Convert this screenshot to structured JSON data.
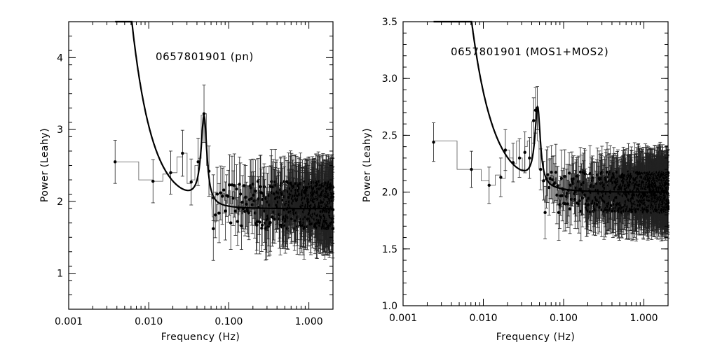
{
  "chart_data": [
    {
      "type": "scatter",
      "annotation": "0657801901 (pn)",
      "xlabel": "Frequency (Hz)",
      "ylabel": "Power (Leahy)",
      "xscale": "log",
      "xlim": [
        0.001,
        2.0
      ],
      "ylim": [
        0.5,
        4.5
      ],
      "xticks": [
        0.001,
        0.01,
        0.1,
        1.0
      ],
      "xtick_labels": [
        "0.001",
        "0.010",
        "0.100",
        "1.000"
      ],
      "yticks": [
        1,
        2,
        3,
        4
      ],
      "ytick_labels": [
        "1",
        "2",
        "3",
        "4"
      ],
      "model": {
        "type": "lorentzian+powerlaw",
        "const": 1.9,
        "plA": 0.00045,
        "plIdx": 1.7,
        "peakAmp": 1.22,
        "peakFreq": 0.049,
        "peakHWHM": 0.005
      },
      "step_histogram": [
        {
          "x": [
            0.0038,
            0.0075
          ],
          "y": 2.55
        },
        {
          "x": [
            0.0075,
            0.0113
          ],
          "y": 2.3
        },
        {
          "x": [
            0.0113,
            0.015
          ],
          "y": 2.28
        },
        {
          "x": [
            0.015,
            0.0188
          ],
          "y": 2.38
        },
        {
          "x": [
            0.0188,
            0.0226
          ],
          "y": 2.4
        },
        {
          "x": [
            0.0226,
            0.0264
          ],
          "y": 2.62
        },
        {
          "x": [
            0.0264,
            0.0301
          ],
          "y": 2.67
        },
        {
          "x": [
            0.0301,
            0.0339
          ],
          "y": 2.25
        },
        {
          "x": [
            0.0339,
            0.0377
          ],
          "y": 2.3
        },
        {
          "x": [
            0.0377,
            0.0414
          ],
          "y": 2.5
        },
        {
          "x": [
            0.0414,
            0.0452
          ],
          "y": 2.6
        },
        {
          "x": [
            0.0452,
            0.049
          ],
          "y": 3.2
        },
        {
          "x": [
            0.049,
            0.0527
          ],
          "y": 3.22
        },
        {
          "x": [
            0.0527,
            0.0565
          ],
          "y": 2.5
        },
        {
          "x": [
            0.0565,
            0.0603
          ],
          "y": 2.1
        }
      ],
      "points": [
        {
          "x": 0.0038,
          "y": 2.55,
          "err": 0.3
        },
        {
          "x": 0.0113,
          "y": 2.28,
          "err": 0.3
        },
        {
          "x": 0.0188,
          "y": 2.4,
          "err": 0.3
        },
        {
          "x": 0.0264,
          "y": 2.67,
          "err": 0.32
        },
        {
          "x": 0.0339,
          "y": 2.27,
          "err": 0.32
        },
        {
          "x": 0.0414,
          "y": 2.55,
          "err": 0.33
        },
        {
          "x": 0.049,
          "y": 3.22,
          "err": 0.4
        },
        {
          "x": 0.0565,
          "y": 2.42,
          "err": 0.35
        },
        {
          "x": 0.064,
          "y": 2.05,
          "err": 0.32
        }
      ],
      "noise_tail": {
        "from": 0.064,
        "to": 2.0,
        "step": 0.0038,
        "mean": 1.95,
        "spread": 0.55,
        "err": 0.35,
        "seed": 7
      }
    },
    {
      "type": "scatter",
      "annotation": "0657801901 (MOS1+MOS2)",
      "xlabel": "Frequency (Hz)",
      "ylabel": "Power (Leahy)",
      "xscale": "log",
      "xlim": [
        0.001,
        2.0
      ],
      "ylim": [
        1.0,
        3.5
      ],
      "xticks": [
        0.001,
        0.01,
        0.1,
        1.0
      ],
      "xtick_labels": [
        "0.001",
        "0.010",
        "0.100",
        "1.000"
      ],
      "yticks": [
        1.0,
        1.5,
        2.0,
        2.5,
        3.0,
        3.5
      ],
      "ytick_labels": [
        "1.0",
        "1.5",
        "2.0",
        "2.5",
        "3.0",
        "3.5"
      ],
      "model": {
        "type": "lorentzian+powerlaw",
        "const": 2.0,
        "plA": 0.00055,
        "plIdx": 1.6,
        "peakAmp": 0.68,
        "peakFreq": 0.0475,
        "peakHWHM": 0.0045
      },
      "step_histogram": [
        {
          "x": [
            0.0024,
            0.0047
          ],
          "y": 2.45
        },
        {
          "x": [
            0.0047,
            0.0071
          ],
          "y": 2.2
        },
        {
          "x": [
            0.0071,
            0.0094
          ],
          "y": 2.2
        },
        {
          "x": [
            0.0094,
            0.0118
          ],
          "y": 2.1
        },
        {
          "x": [
            0.0118,
            0.0141
          ],
          "y": 2.06
        },
        {
          "x": [
            0.0141,
            0.0165
          ],
          "y": 2.15
        },
        {
          "x": [
            0.0165,
            0.0188
          ],
          "y": 2.12
        },
        {
          "x": [
            0.0188,
            0.0212
          ],
          "y": 2.37
        },
        {
          "x": [
            0.0212,
            0.0235
          ],
          "y": 2.3
        },
        {
          "x": [
            0.0235,
            0.0259
          ],
          "y": 2.25
        },
        {
          "x": [
            0.0259,
            0.0282
          ],
          "y": 2.45
        },
        {
          "x": [
            0.0282,
            0.0306
          ],
          "y": 2.3
        },
        {
          "x": [
            0.0306,
            0.0329
          ],
          "y": 2.2
        },
        {
          "x": [
            0.0329,
            0.0353
          ],
          "y": 2.4
        },
        {
          "x": [
            0.0353,
            0.0376
          ],
          "y": 2.45
        },
        {
          "x": [
            0.0376,
            0.04
          ],
          "y": 2.3
        },
        {
          "x": [
            0.04,
            0.0423
          ],
          "y": 2.62
        },
        {
          "x": [
            0.0423,
            0.0447
          ],
          "y": 2.72
        },
        {
          "x": [
            0.0447,
            0.047
          ],
          "y": 2.74
        },
        {
          "x": [
            0.047,
            0.0494
          ],
          "y": 2.45
        },
        {
          "x": [
            0.0494,
            0.0517
          ],
          "y": 2.2
        },
        {
          "x": [
            0.0517,
            0.0541
          ],
          "y": 2.1
        }
      ],
      "points": [
        {
          "x": 0.0024,
          "y": 2.44,
          "err": 0.17
        },
        {
          "x": 0.0071,
          "y": 2.2,
          "err": 0.16
        },
        {
          "x": 0.0118,
          "y": 2.06,
          "err": 0.16
        },
        {
          "x": 0.0165,
          "y": 2.13,
          "err": 0.17
        },
        {
          "x": 0.0188,
          "y": 2.37,
          "err": 0.18
        },
        {
          "x": 0.0235,
          "y": 2.26,
          "err": 0.17
        },
        {
          "x": 0.0282,
          "y": 2.3,
          "err": 0.17
        },
        {
          "x": 0.0329,
          "y": 2.35,
          "err": 0.18
        },
        {
          "x": 0.0376,
          "y": 2.3,
          "err": 0.18
        },
        {
          "x": 0.0423,
          "y": 2.63,
          "err": 0.2
        },
        {
          "x": 0.0447,
          "y": 2.72,
          "err": 0.2
        },
        {
          "x": 0.047,
          "y": 2.74,
          "err": 0.19
        },
        {
          "x": 0.0517,
          "y": 2.2,
          "err": 0.18
        },
        {
          "x": 0.0564,
          "y": 2.1,
          "err": 0.17
        }
      ],
      "noise_tail": {
        "from": 0.0588,
        "to": 2.0,
        "step": 0.00235,
        "mean": 2.0,
        "spread": 0.3,
        "err": 0.2,
        "seed": 13
      }
    }
  ]
}
